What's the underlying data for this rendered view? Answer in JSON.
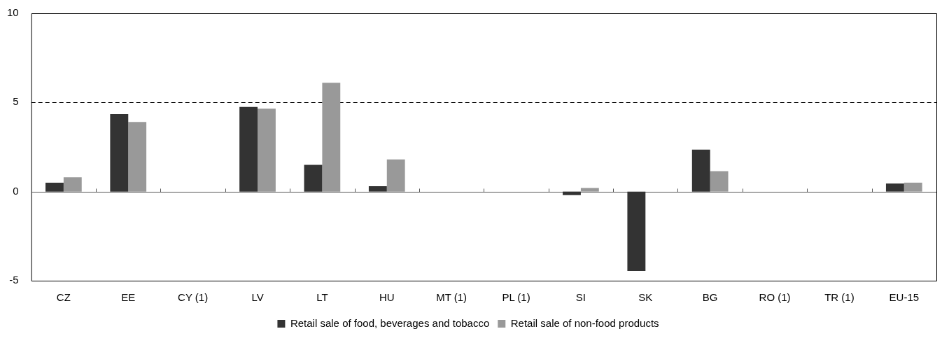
{
  "chart_data": {
    "type": "bar",
    "categories": [
      "CZ",
      "EE",
      "CY (1)",
      "LV",
      "LT",
      "HU",
      "MT (1)",
      "PL (1)",
      "SI",
      "SK",
      "BG",
      "RO (1)",
      "TR (1)",
      "EU-15"
    ],
    "series": [
      {
        "name": "Retail sale of food, beverages and tobacco",
        "color": "#333333",
        "values": [
          0.5,
          4.35,
          null,
          4.75,
          1.5,
          0.3,
          null,
          null,
          -0.2,
          -4.45,
          2.35,
          null,
          null,
          0.45
        ]
      },
      {
        "name": "Retail sale of non-food products",
        "color": "#999999",
        "values": [
          0.8,
          3.9,
          null,
          4.65,
          6.1,
          1.8,
          null,
          null,
          0.2,
          0,
          1.15,
          null,
          null,
          0.5
        ]
      }
    ],
    "ylim": [
      -5,
      10
    ],
    "yticks": [
      -5,
      0,
      5,
      10
    ],
    "legend": "bottom",
    "ref_lines": [
      {
        "axis": "y",
        "value": 5,
        "color": "#000000",
        "line_style": "dashed"
      }
    ]
  }
}
